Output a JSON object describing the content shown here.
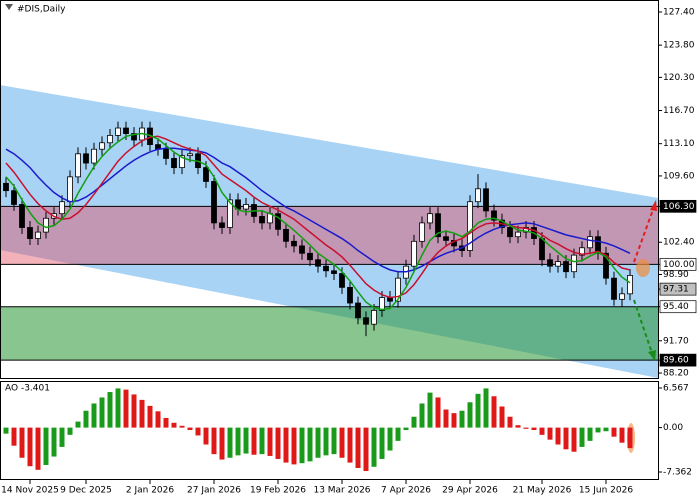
{
  "chart_data": {
    "type": "candlestick",
    "title": "#DIS,Daily",
    "categories": [
      null,
      null,
      null,
      "14 Nov 2025",
      null,
      null,
      null,
      null,
      null,
      null,
      "9 Dec 2025",
      null,
      null,
      null,
      null,
      null,
      null,
      null,
      "2 Jan 2026",
      null,
      null,
      null,
      null,
      null,
      null,
      null,
      "27 Jan 2026",
      null,
      null,
      null,
      null,
      null,
      null,
      null,
      "19 Feb 2026",
      null,
      null,
      null,
      null,
      null,
      null,
      null,
      "13 Mar 2026",
      null,
      null,
      null,
      null,
      null,
      null,
      null,
      "7 Apr 2026",
      null,
      null,
      null,
      null,
      null,
      null,
      null,
      "29 Apr 2026",
      null,
      null,
      null,
      null,
      null,
      null,
      null,
      null,
      "21 May 2026",
      null,
      null,
      null,
      null,
      null,
      null,
      null,
      "15 Jun 2026",
      null,
      null,
      null
    ],
    "open": [
      108.8,
      108.0,
      106.5,
      104.0,
      102.8,
      103.5,
      105.0,
      105.5,
      106.8,
      109.5,
      112.0,
      111.0,
      112.5,
      113.2,
      114.0,
      114.8,
      114.2,
      113.5,
      114.8,
      113.0,
      112.5,
      111.5,
      110.5,
      111.8,
      112.0,
      110.5,
      109.0,
      104.5,
      104.0,
      107.0,
      106.0,
      106.5,
      105.2,
      104.5,
      105.5,
      103.8,
      102.5,
      102.0,
      101.2,
      100.5,
      99.8,
      99.3,
      99.0,
      97.5,
      95.8,
      94.2,
      93.5,
      95.0,
      96.4,
      96.0,
      98.5,
      99.8,
      102.5,
      104.5,
      105.5,
      103.0,
      102.6,
      102.0,
      101.5,
      106.8,
      108.2,
      105.8,
      104.8,
      104.0,
      103.0,
      103.5,
      104.0,
      102.8,
      100.5,
      99.8,
      100.3,
      99.2,
      101.0,
      101.8,
      103.0,
      101.2,
      98.5,
      96.2,
      96.8
    ],
    "high": [
      109.5,
      108.7,
      107.2,
      104.7,
      104.2,
      105.7,
      106.2,
      107.5,
      110.2,
      112.7,
      112.7,
      113.2,
      113.9,
      114.7,
      115.5,
      115.5,
      114.9,
      115.5,
      115.5,
      113.7,
      113.2,
      112.2,
      112.5,
      112.7,
      112.7,
      111.2,
      109.7,
      105.2,
      107.7,
      107.7,
      107.2,
      107.2,
      105.9,
      106.2,
      106.2,
      104.5,
      103.2,
      102.7,
      101.9,
      101.2,
      100.5,
      100.0,
      99.7,
      98.2,
      96.5,
      94.9,
      95.7,
      97.1,
      97.1,
      99.2,
      100.5,
      103.2,
      105.2,
      106.2,
      106.2,
      103.7,
      103.3,
      102.7,
      107.5,
      109.8,
      108.9,
      106.5,
      105.5,
      104.7,
      104.2,
      104.7,
      104.7,
      103.5,
      101.2,
      101.0,
      101.0,
      101.7,
      102.5,
      103.7,
      103.7,
      101.9,
      99.2,
      97.5,
      99.5
    ],
    "low": [
      107.3,
      105.8,
      103.3,
      102.1,
      102.1,
      102.8,
      104.3,
      104.8,
      106.1,
      108.8,
      110.3,
      110.3,
      111.8,
      112.5,
      113.3,
      113.5,
      112.8,
      112.8,
      112.3,
      111.8,
      110.8,
      109.8,
      109.8,
      111.1,
      109.8,
      108.3,
      103.8,
      103.3,
      103.3,
      105.3,
      105.3,
      104.5,
      103.8,
      103.8,
      103.1,
      101.8,
      101.3,
      100.5,
      99.8,
      99.1,
      98.6,
      98.3,
      96.8,
      95.1,
      93.5,
      92.2,
      92.8,
      94.3,
      95.3,
      95.3,
      97.8,
      99.1,
      101.8,
      103.8,
      102.3,
      101.9,
      101.3,
      100.8,
      100.8,
      106.1,
      105.1,
      104.1,
      103.3,
      102.3,
      102.3,
      102.8,
      102.1,
      99.8,
      99.1,
      99.1,
      98.5,
      98.5,
      100.3,
      101.1,
      100.5,
      97.8,
      95.5,
      95.4,
      96.1
    ],
    "close": [
      108.0,
      106.5,
      104.0,
      102.8,
      103.5,
      105.0,
      105.5,
      106.8,
      109.5,
      112.0,
      111.0,
      112.5,
      113.2,
      114.0,
      114.8,
      114.2,
      113.5,
      114.8,
      113.0,
      112.5,
      111.5,
      110.5,
      111.8,
      112.0,
      110.5,
      109.0,
      104.5,
      104.0,
      107.0,
      106.0,
      106.5,
      105.2,
      104.5,
      105.5,
      103.8,
      102.5,
      102.0,
      101.2,
      100.5,
      99.8,
      99.3,
      99.0,
      97.5,
      95.8,
      94.2,
      93.5,
      95.0,
      96.4,
      96.0,
      98.5,
      99.8,
      102.5,
      104.5,
      105.5,
      103.0,
      102.6,
      102.0,
      101.5,
      106.8,
      108.2,
      105.8,
      104.8,
      104.0,
      103.0,
      103.5,
      104.0,
      102.8,
      100.5,
      99.8,
      100.3,
      99.2,
      101.0,
      101.8,
      103.0,
      101.2,
      98.5,
      96.2,
      96.8,
      98.8
    ],
    "up_color": "#ffffff",
    "down_color": "#000000",
    "series": [
      {
        "color": "#1a1acc",
        "values": [
          112.5,
          112.0,
          111.3,
          110.5,
          109.5,
          108.6,
          107.8,
          107.2,
          106.8,
          106.9,
          107.3,
          107.9,
          108.6,
          109.3,
          110.0,
          110.7,
          111.3,
          111.8,
          112.2,
          112.5,
          112.6,
          112.6,
          112.5,
          112.4,
          112.3,
          112.1,
          111.6,
          111.0,
          110.6,
          110.0,
          109.4,
          108.7,
          108.0,
          107.4,
          106.8,
          106.2,
          105.8,
          105.3,
          104.8,
          104.3,
          103.8,
          103.3,
          102.8,
          102.2,
          101.5,
          100.9,
          100.3,
          99.8,
          99.4,
          99.2,
          99.2,
          99.4,
          99.8,
          100.3,
          100.8,
          101.2,
          101.5,
          101.8,
          102.3,
          102.9,
          103.4,
          103.8,
          104.1,
          104.3,
          104.4,
          104.5,
          104.4,
          104.1,
          103.8,
          103.5,
          103.2,
          103.0,
          102.8,
          102.6,
          102.5,
          102.3,
          102.0,
          101.6,
          101.2
        ]
      },
      {
        "color": "#c8102e",
        "values": [
          111.0,
          110.0,
          108.8,
          107.6,
          106.6,
          105.8,
          105.2,
          104.9,
          105.0,
          105.6,
          106.5,
          107.6,
          108.8,
          110.0,
          111.2,
          112.1,
          112.8,
          113.4,
          113.8,
          113.9,
          113.6,
          113.2,
          112.8,
          112.5,
          112.3,
          111.8,
          110.8,
          109.8,
          109.2,
          108.6,
          108.0,
          107.3,
          106.7,
          106.3,
          105.9,
          105.4,
          104.9,
          104.2,
          103.5,
          102.8,
          102.1,
          101.5,
          100.8,
          99.9,
          98.9,
          97.9,
          97.2,
          96.7,
          96.4,
          96.5,
          96.9,
          97.8,
          99.0,
          100.3,
          101.3,
          102.0,
          102.5,
          102.8,
          103.4,
          104.0,
          104.4,
          104.5,
          104.4,
          104.2,
          104.0,
          103.9,
          103.7,
          103.2,
          102.6,
          102.2,
          101.7,
          101.3,
          101.1,
          101.2,
          101.4,
          101.0,
          100.2,
          99.6,
          99.4
        ]
      },
      {
        "color": "#10a010",
        "values": [
          109.5,
          108.5,
          107.0,
          105.6,
          104.5,
          104.0,
          104.2,
          104.9,
          106.0,
          107.7,
          109.2,
          110.6,
          111.7,
          112.6,
          113.3,
          113.9,
          114.1,
          114.2,
          114.0,
          113.6,
          112.9,
          112.2,
          111.6,
          111.3,
          111.2,
          110.8,
          109.5,
          107.8,
          106.7,
          105.9,
          105.7,
          105.8,
          105.8,
          105.5,
          105.1,
          104.4,
          103.7,
          102.9,
          102.1,
          101.2,
          100.6,
          100.0,
          99.2,
          98.2,
          97.0,
          95.9,
          95.3,
          95.1,
          95.2,
          96.2,
          97.5,
          99.2,
          101.0,
          102.6,
          103.4,
          103.6,
          103.4,
          103.0,
          103.6,
          104.5,
          104.9,
          105.0,
          104.7,
          104.2,
          103.7,
          103.6,
          103.4,
          102.8,
          102.0,
          101.3,
          100.6,
          100.3,
          100.4,
          100.9,
          101.3,
          100.8,
          99.6,
          98.6,
          98.0
        ]
      }
    ],
    "zones": [
      {
        "from": 100.0,
        "to": 106.3,
        "color": "rgba(226,70,90,0.42)"
      },
      {
        "from": 89.6,
        "to": 95.4,
        "color": "rgba(40,150,50,0.55)"
      }
    ],
    "ylim": [
      87.66,
      128.7
    ],
    "yticks": [
      {
        "value": 127.4,
        "label": "127.40"
      },
      {
        "value": 123.8,
        "label": "123.80"
      },
      {
        "value": 120.3,
        "label": "120.30"
      },
      {
        "value": 116.7,
        "label": "116.70"
      },
      {
        "value": 113.1,
        "label": "113.10"
      },
      {
        "value": 109.6,
        "label": "109.60"
      },
      {
        "value": 106.3,
        "label": "106.30",
        "box": "#000000",
        "line": true
      },
      {
        "value": 102.4,
        "label": "102.40"
      },
      {
        "value": 100.0,
        "label": "100.00",
        "box": "#ffffff",
        "line": true
      },
      {
        "value": 98.9,
        "label": "98.90"
      },
      {
        "value": 97.31,
        "label": "97.31",
        "box": "#c0c0c0"
      },
      {
        "value": 95.4,
        "label": "95.40",
        "box": "#ffffff",
        "line": true
      },
      {
        "value": 91.7,
        "label": "91.70"
      },
      {
        "value": 89.6,
        "label": "89.60",
        "box": "#000000",
        "line": true
      },
      {
        "value": 88.2,
        "label": "88.20"
      }
    ],
    "indicator": {
      "title": "AO -3.401",
      "up_color": "#1a9a1a",
      "down_color": "#e01818",
      "values": [
        -1.0,
        -3.0,
        -5.0,
        -6.4,
        -7.0,
        -6.2,
        -4.8,
        -3.2,
        -1.2,
        1.0,
        2.8,
        4.0,
        5.0,
        5.9,
        6.5,
        6.3,
        5.5,
        4.6,
        3.6,
        2.7,
        1.6,
        0.8,
        0.3,
        -0.4,
        -1.3,
        -2.8,
        -4.4,
        -5.3,
        -5.0,
        -4.6,
        -4.3,
        -4.5,
        -4.4,
        -4.7,
        -5.2,
        -5.8,
        -6.1,
        -5.9,
        -5.6,
        -5.0,
        -4.6,
        -4.4,
        -5.0,
        -5.8,
        -6.7,
        -7.2,
        -6.5,
        -5.2,
        -3.8,
        -2.2,
        -0.4,
        1.8,
        4.0,
        5.8,
        5.0,
        3.0,
        2.4,
        2.8,
        4.2,
        5.6,
        6.5,
        5.2,
        3.5,
        1.8,
        0.4,
        -0.2,
        -0.4,
        -1.2,
        -2.0,
        -2.8,
        -3.6,
        -4.0,
        -3.2,
        -2.2,
        -0.8,
        -0.6,
        -1.5,
        -2.5,
        -3.4
      ],
      "ylim": [
        -8.69,
        7.73
      ],
      "yticks": [
        {
          "value": 6.567,
          "label": "6.567"
        },
        {
          "value": 0,
          "label": "0.00"
        },
        {
          "value": -7.362,
          "label": "-7.362"
        }
      ]
    }
  }
}
